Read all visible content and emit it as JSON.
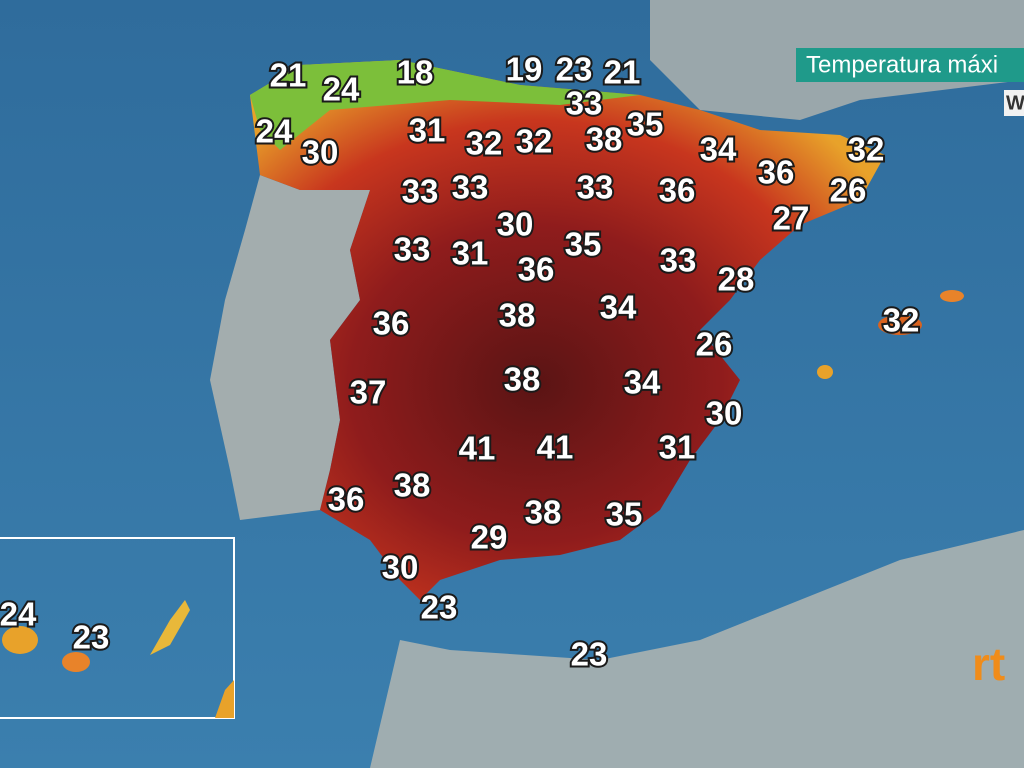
{
  "header": {
    "title": "Temperatura máxi",
    "subtitle": "W"
  },
  "logo": "rt",
  "temperatures": [
    21,
    24,
    18,
    19,
    23,
    21,
    33,
    24,
    30,
    31,
    32,
    32,
    38,
    35,
    34,
    36,
    32,
    26,
    33,
    33,
    33,
    36,
    27,
    30,
    33,
    31,
    35,
    36,
    33,
    28,
    36,
    38,
    34,
    32,
    26,
    37,
    38,
    34,
    30,
    41,
    41,
    31,
    36,
    38,
    38,
    35,
    29,
    30,
    23,
    24,
    23,
    23
  ]
}
